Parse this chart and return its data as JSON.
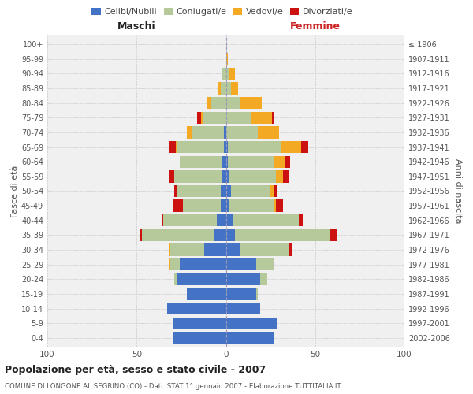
{
  "age_groups": [
    "0-4",
    "5-9",
    "10-14",
    "15-19",
    "20-24",
    "25-29",
    "30-34",
    "35-39",
    "40-44",
    "45-49",
    "50-54",
    "55-59",
    "60-64",
    "65-69",
    "70-74",
    "75-79",
    "80-84",
    "85-89",
    "90-94",
    "95-99",
    "100+"
  ],
  "birth_years": [
    "2002-2006",
    "1997-2001",
    "1992-1996",
    "1987-1991",
    "1982-1986",
    "1977-1981",
    "1972-1976",
    "1967-1971",
    "1962-1966",
    "1957-1961",
    "1952-1956",
    "1947-1951",
    "1942-1946",
    "1937-1941",
    "1932-1936",
    "1927-1931",
    "1922-1926",
    "1917-1921",
    "1912-1916",
    "1907-1911",
    "≤ 1906"
  ],
  "male_celibinubili": [
    30,
    30,
    33,
    22,
    27,
    26,
    12,
    7,
    5,
    3,
    3,
    2,
    2,
    1,
    1,
    0,
    0,
    0,
    0,
    0,
    0
  ],
  "male_coniugati": [
    0,
    0,
    0,
    0,
    2,
    5,
    19,
    40,
    30,
    21,
    24,
    27,
    24,
    26,
    18,
    13,
    8,
    3,
    2,
    0,
    0
  ],
  "male_vedovi": [
    0,
    0,
    0,
    0,
    0,
    1,
    1,
    0,
    0,
    0,
    0,
    0,
    0,
    1,
    3,
    1,
    3,
    1,
    0,
    0,
    0
  ],
  "male_divorziati": [
    0,
    0,
    0,
    0,
    0,
    0,
    0,
    1,
    1,
    6,
    2,
    3,
    0,
    4,
    0,
    2,
    0,
    0,
    0,
    0,
    0
  ],
  "female_celibinubili": [
    27,
    29,
    19,
    17,
    19,
    17,
    8,
    5,
    4,
    2,
    3,
    2,
    1,
    1,
    0,
    0,
    0,
    0,
    0,
    0,
    0
  ],
  "female_coniugati": [
    0,
    0,
    0,
    1,
    4,
    10,
    27,
    53,
    37,
    25,
    22,
    26,
    26,
    30,
    18,
    14,
    8,
    3,
    2,
    0,
    0
  ],
  "female_vedovi": [
    0,
    0,
    0,
    0,
    0,
    0,
    0,
    0,
    0,
    1,
    2,
    4,
    6,
    11,
    12,
    12,
    12,
    4,
    3,
    1,
    0
  ],
  "female_divorziati": [
    0,
    0,
    0,
    0,
    0,
    0,
    2,
    4,
    2,
    4,
    2,
    3,
    3,
    4,
    0,
    1,
    0,
    0,
    0,
    0,
    0
  ],
  "color_celibinubili": "#4472c4",
  "color_coniugati": "#b5c99a",
  "color_vedovi": "#f4a925",
  "color_divorziati": "#cc1111",
  "title": "Popolazione per età, sesso e stato civile - 2007",
  "subtitle": "COMUNE DI LONGONE AL SEGRINO (CO) - Dati ISTAT 1° gennaio 2007 - Elaborazione TUTTITALIA.IT",
  "label_maschi": "Maschi",
  "label_femmine": "Femmine",
  "ylabel_left": "Fasce di età",
  "ylabel_right": "Anni di nascita",
  "xlim": 100,
  "bg_color": "#f0f0f0",
  "grid_color": "#cccccc"
}
